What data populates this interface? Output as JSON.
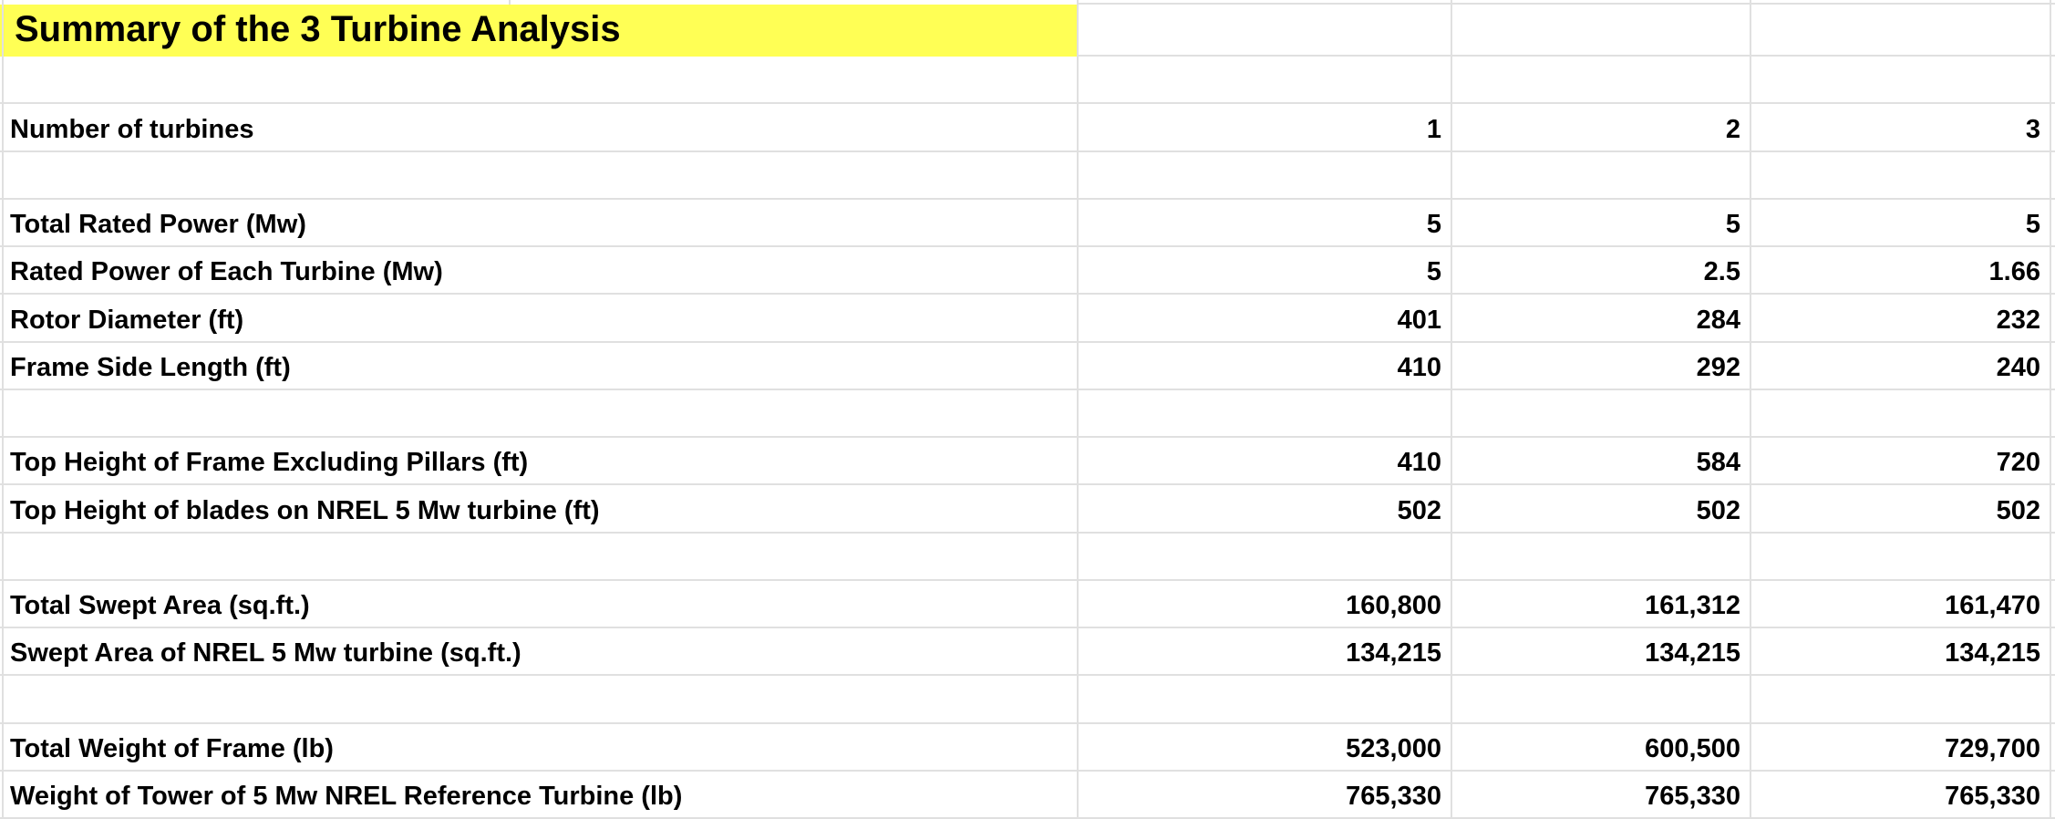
{
  "sheet": {
    "title": "Summary of the 3 Turbine Analysis",
    "title_highlight_color": "#FFFF55",
    "gridline_color": "#E0E0E0",
    "text_color": "#000000",
    "background_color": "#FFFFFF",
    "rows": [
      {
        "label": "",
        "values": [
          "",
          "",
          ""
        ]
      },
      {
        "label": "Number of turbines",
        "values": [
          "1",
          "2",
          "3"
        ]
      },
      {
        "label": "",
        "values": [
          "",
          "",
          ""
        ]
      },
      {
        "label": "Total Rated Power (Mw)",
        "values": [
          "5",
          "5",
          "5"
        ]
      },
      {
        "label": "Rated Power of Each Turbine (Mw)",
        "values": [
          "5",
          "2.5",
          "1.66"
        ]
      },
      {
        "label": "Rotor Diameter (ft)",
        "values": [
          "401",
          "284",
          "232"
        ]
      },
      {
        "label": "Frame Side Length (ft)",
        "values": [
          "410",
          "292",
          "240"
        ]
      },
      {
        "label": "",
        "values": [
          "",
          "",
          ""
        ]
      },
      {
        "label": "Top Height of Frame Excluding Pillars (ft)",
        "values": [
          "410",
          "584",
          "720"
        ]
      },
      {
        "label": "Top Height of blades on NREL 5 Mw turbine (ft)",
        "values": [
          "502",
          "502",
          "502"
        ]
      },
      {
        "label": "",
        "values": [
          "",
          "",
          ""
        ]
      },
      {
        "label": "Total Swept Area (sq.ft.)",
        "values": [
          "160,800",
          "161,312",
          "161,470"
        ]
      },
      {
        "label": "Swept Area of NREL 5 Mw turbine (sq.ft.)",
        "values": [
          "134,215",
          "134,215",
          "134,215"
        ]
      },
      {
        "label": "",
        "values": [
          "",
          "",
          ""
        ]
      },
      {
        "label": "Total Weight of Frame (lb)",
        "values": [
          "523,000",
          "600,500",
          "729,700"
        ]
      },
      {
        "label": "Weight of Tower of 5 Mw NREL Reference Turbine (lb)",
        "values": [
          "765,330",
          "765,330",
          "765,330"
        ]
      }
    ]
  }
}
